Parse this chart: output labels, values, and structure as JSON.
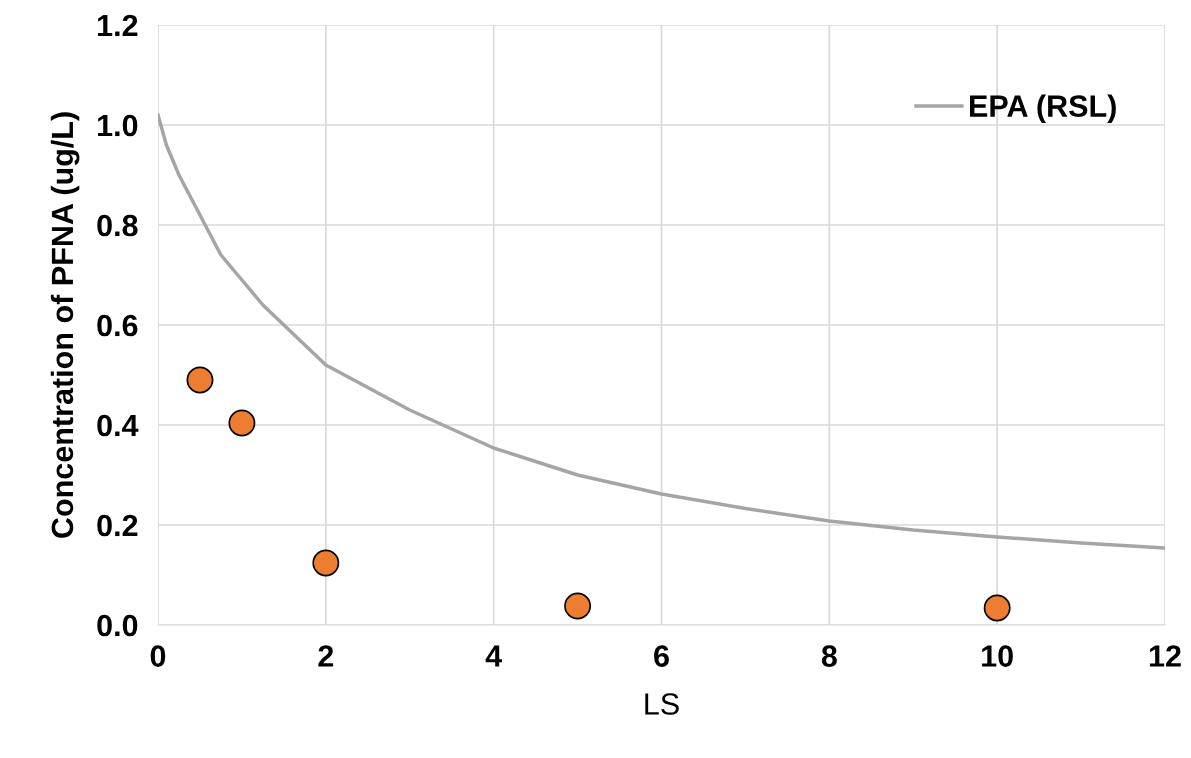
{
  "chart_data": {
    "type": "scatter",
    "xlabel": "LS",
    "ylabel": "Concentration of PFNA (ug/L)",
    "series": [
      {
        "type": "line",
        "marker": "none",
        "name": "EPA (RSL)",
        "color": "#a5a5a5",
        "x": [
          0,
          0.1,
          0.25,
          0.5,
          0.75,
          1,
          1.25,
          1.5,
          2,
          3,
          4,
          5,
          6,
          7,
          8,
          9,
          10,
          11,
          12
        ],
        "values": [
          1.02,
          0.96,
          0.9,
          0.82,
          0.74,
          0.69,
          0.64,
          0.6,
          0.52,
          0.43,
          0.354,
          0.3,
          0.262,
          0.233,
          0.208,
          0.19,
          0.176,
          0.164,
          0.154
        ]
      },
      {
        "marker": "circle",
        "color": "#ed7d31",
        "x": [
          0.5,
          1,
          2,
          5,
          10
        ],
        "values": [
          0.49,
          0.404,
          0.124,
          0.038,
          0.034
        ]
      }
    ],
    "xlim": [
      0,
      12
    ],
    "xticks": [
      0,
      2,
      4,
      6,
      8,
      10,
      12
    ],
    "ylim": [
      0,
      1.2
    ],
    "yticks": [
      {
        "value": 0,
        "label": "0.0"
      },
      {
        "value": 0.2,
        "label": "0.2"
      },
      {
        "value": 0.4,
        "label": "0.4"
      },
      {
        "value": 0.6,
        "label": "0.6"
      },
      {
        "value": 0.8,
        "label": "0.8"
      },
      {
        "value": 1.0,
        "label": "1.0"
      },
      {
        "value": 1.2,
        "label": "1.2"
      }
    ],
    "grid": true,
    "legend": "top right"
  }
}
